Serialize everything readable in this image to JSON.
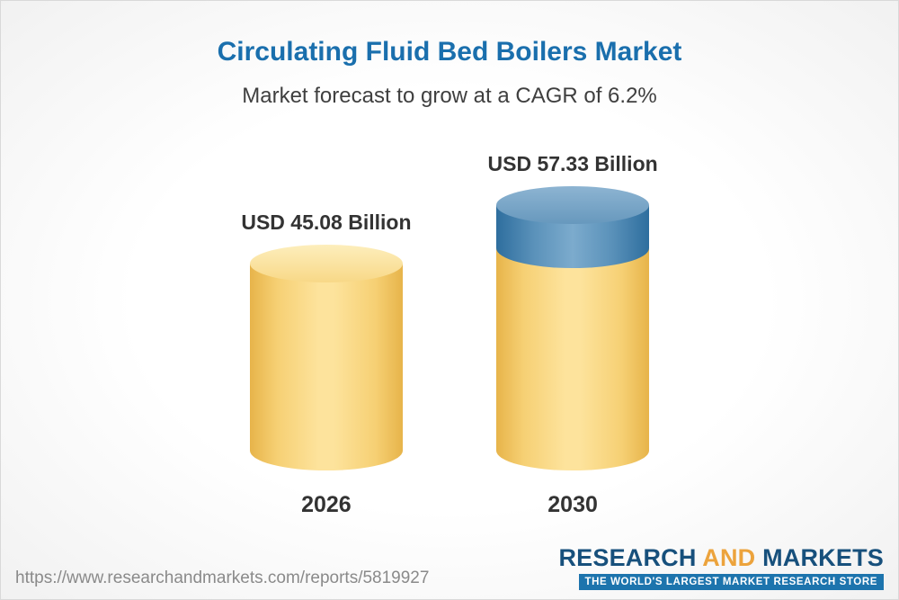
{
  "header": {
    "title": "Circulating Fluid Bed Boilers Market",
    "subtitle": "Market forecast to grow at a CAGR of 6.2%"
  },
  "chart_data": {
    "type": "bar",
    "subtype": "3d-cylinder",
    "title": "Circulating Fluid Bed Boilers Market",
    "subtitle": "Market forecast to grow at a CAGR of 6.2%",
    "cagr_percent": 6.2,
    "unit": "USD Billion",
    "categories": [
      "2026",
      "2030"
    ],
    "values": [
      45.08,
      57.33
    ],
    "value_labels": [
      "USD 45.08 Billion",
      "USD 57.33 Billion"
    ],
    "series_notes": "2030 bar shows base value in yellow with growth segment above 45.08 highlighted in blue",
    "ylim": [
      0,
      60
    ],
    "grid": false,
    "legend": "none",
    "colors": {
      "base_segment": "#f6cf6f",
      "growth_segment": "#5b92ba",
      "title_text": "#1a6fad",
      "label_text": "#333333"
    }
  },
  "footer": {
    "url": "https://www.researchandmarkets.com/reports/5819927",
    "logo": {
      "word_research": "RESEARCH",
      "word_and": "AND",
      "word_markets": "MARKETS",
      "tagline": "THE WORLD'S LARGEST MARKET RESEARCH STORE"
    }
  }
}
